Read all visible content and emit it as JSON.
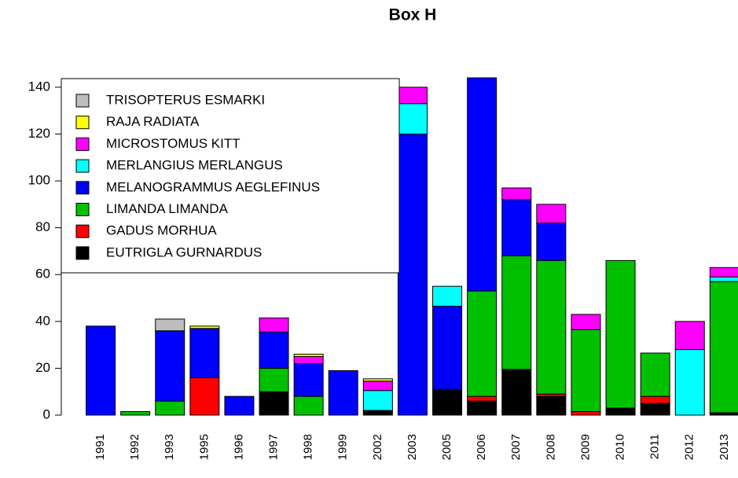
{
  "chart_data": {
    "type": "stacked-bar",
    "title": "Box H",
    "categories": [
      "1991",
      "1992",
      "1993",
      "1995",
      "1996",
      "1997",
      "1998",
      "1999",
      "2002",
      "2003",
      "2005",
      "2006",
      "2007",
      "2008",
      "2009",
      "2010",
      "2011",
      "2012",
      "2013"
    ],
    "ylim": [
      0,
      144
    ],
    "yticks": [
      0,
      20,
      40,
      60,
      80,
      100,
      120,
      140
    ],
    "legend": "top-left",
    "series": [
      {
        "name": "EUTRIGLA GURNARDUS",
        "color": "#000000",
        "values": [
          0,
          0,
          0,
          0,
          0,
          10,
          0,
          0,
          2,
          0,
          11,
          6,
          19.5,
          8,
          0,
          3,
          5,
          0,
          1
        ]
      },
      {
        "name": "GADUS MORHUA",
        "color": "#ff0000",
        "values": [
          0,
          0,
          0,
          16,
          0,
          0,
          0,
          0,
          0,
          0,
          0,
          2,
          0,
          1,
          1.5,
          0,
          3,
          0,
          0
        ]
      },
      {
        "name": "LIMANDA LIMANDA",
        "color": "#00c000",
        "values": [
          0,
          1.5,
          6,
          0,
          0,
          10,
          8,
          0,
          0,
          0,
          0,
          45,
          48.5,
          57,
          35,
          63,
          18.5,
          0,
          56
        ]
      },
      {
        "name": "MELANOGRAMMUS AEGLEFINUS",
        "color": "#0000ff",
        "values": [
          38,
          0,
          30,
          21,
          8,
          15.5,
          14,
          19,
          0,
          120,
          35.5,
          91,
          24,
          16,
          0,
          0,
          0,
          0,
          0
        ]
      },
      {
        "name": "MERLANGIUS MERLANGUS",
        "color": "#00ffff",
        "values": [
          0,
          0,
          0,
          0,
          0,
          0,
          0,
          0,
          8.5,
          13,
          8.5,
          0,
          0,
          0,
          0,
          0,
          0,
          28,
          2
        ]
      },
      {
        "name": "MICROSTOMUS KITT",
        "color": "#ff00ff",
        "values": [
          0,
          0,
          0,
          0,
          0,
          6,
          3,
          0,
          4,
          7,
          0,
          0,
          5,
          8,
          6.5,
          0,
          0,
          12,
          4
        ]
      },
      {
        "name": "RAJA RADIATA",
        "color": "#ffff00",
        "values": [
          0,
          0,
          0,
          1,
          0,
          0,
          1,
          0,
          1,
          0,
          0,
          0,
          0,
          0,
          0,
          0,
          0,
          0,
          0
        ]
      },
      {
        "name": "TRISOPTERUS ESMARKI",
        "color": "#bebebe",
        "values": [
          0,
          0,
          5,
          0,
          0,
          0,
          0,
          0,
          0,
          0,
          0,
          0,
          0,
          0,
          0,
          0,
          0,
          0,
          0
        ]
      }
    ]
  }
}
